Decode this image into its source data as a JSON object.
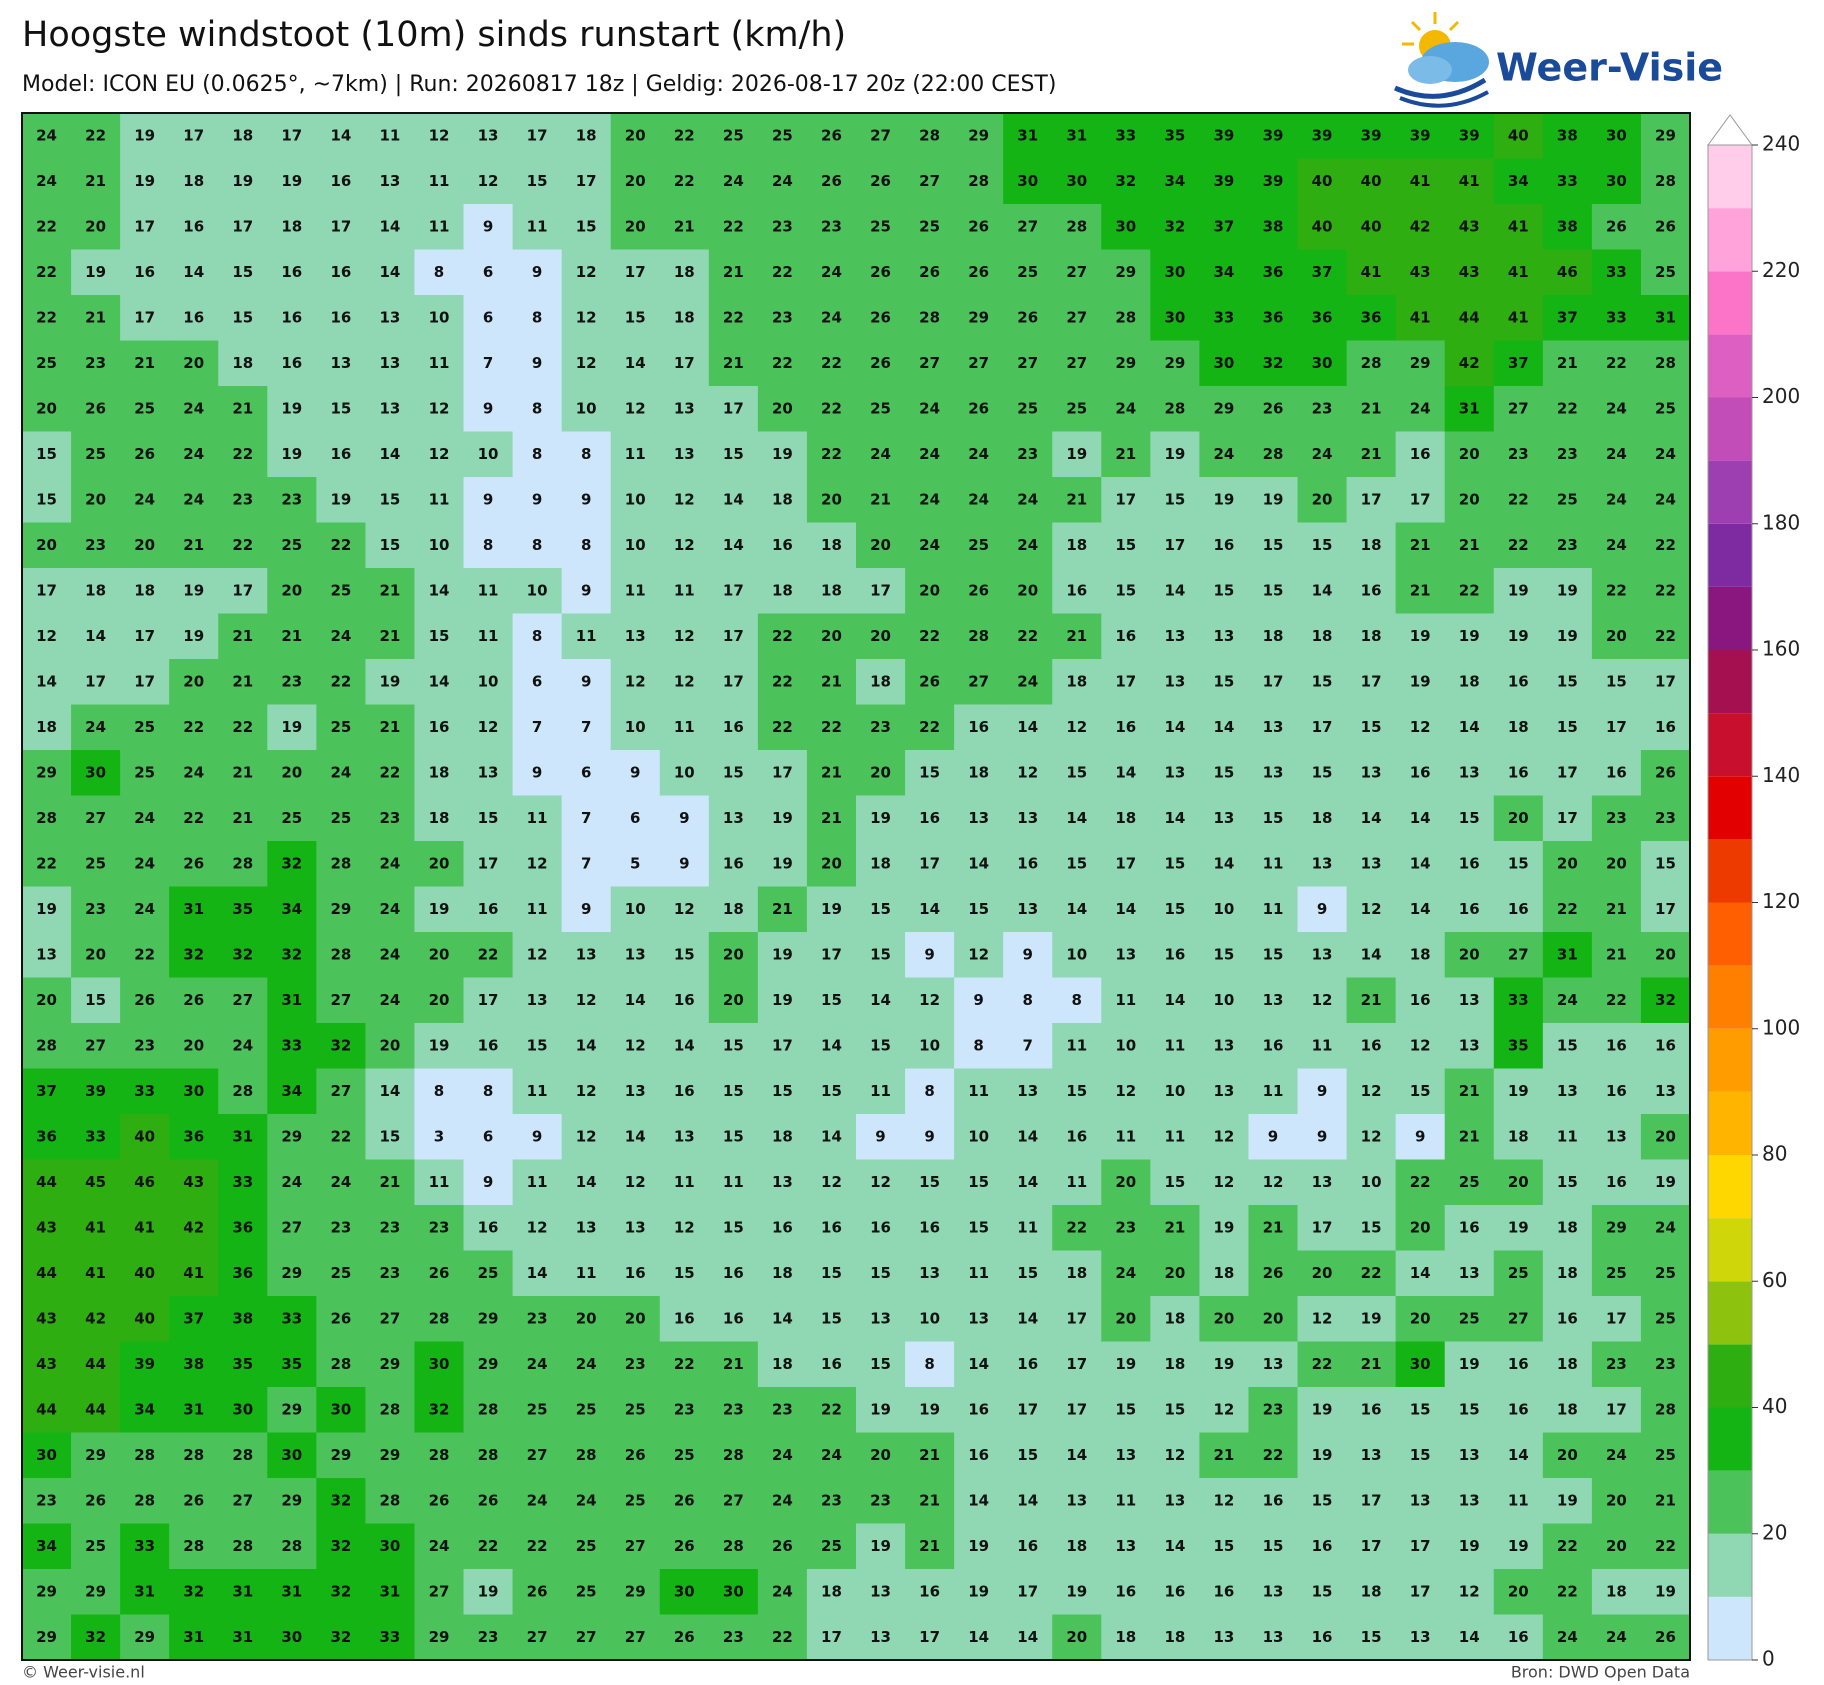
{
  "header": {
    "title": "Hoogste windstoot (10m) sinds runstart (km/h)",
    "subtitle": "Model: ICON EU (0.0625°, ~7km)  |  Run: 20260817 18z  |  Geldig: 2026-08-17 20z (22:00 CEST)"
  },
  "logo": {
    "text": "Weer-Visie"
  },
  "footer": {
    "left": "© Weer-visie.nl",
    "right": "Bron: DWD Open Data"
  },
  "colorbar": {
    "ticks": [
      0,
      20,
      40,
      60,
      80,
      100,
      120,
      140,
      160,
      180,
      200,
      220,
      240
    ],
    "colors": [
      "#cde6fb",
      "#8fd8b3",
      "#4cc25a",
      "#14b414",
      "#2fae12",
      "#8dc30f",
      "#cfd60a",
      "#fed600",
      "#ffb400",
      "#ff9c00",
      "#ff7f00",
      "#ff5f00",
      "#ec3a00",
      "#e30000",
      "#c8102e",
      "#a51050",
      "#8a1780",
      "#7e2aa0",
      "#9d3fb0",
      "#c24db8",
      "#dd5fc2",
      "#fc74c8",
      "#ffa3da",
      "#ffcde9"
    ]
  },
  "grid": {
    "rows": [
      [
        24,
        22,
        19,
        17,
        18,
        17,
        14,
        11,
        12,
        13,
        17,
        18,
        20,
        22,
        25,
        25,
        26,
        27,
        28,
        29,
        31,
        31,
        33,
        35,
        39,
        39,
        39,
        39,
        39,
        39,
        40,
        38,
        30,
        29
      ],
      [
        24,
        21,
        19,
        18,
        19,
        19,
        16,
        13,
        11,
        12,
        15,
        17,
        20,
        22,
        24,
        24,
        26,
        26,
        27,
        28,
        30,
        30,
        32,
        34,
        39,
        39,
        40,
        40,
        41,
        41,
        34,
        33,
        30,
        28
      ],
      [
        22,
        20,
        17,
        16,
        17,
        18,
        17,
        14,
        11,
        9,
        11,
        15,
        20,
        21,
        22,
        23,
        23,
        25,
        25,
        26,
        27,
        28,
        30,
        32,
        37,
        38,
        40,
        40,
        42,
        43,
        41,
        38,
        26,
        26
      ],
      [
        22,
        19,
        16,
        14,
        15,
        16,
        16,
        14,
        8,
        6,
        9,
        12,
        17,
        18,
        21,
        22,
        24,
        26,
        26,
        26,
        25,
        27,
        29,
        30,
        34,
        36,
        37,
        41,
        43,
        43,
        41,
        46,
        33,
        25
      ],
      [
        22,
        21,
        17,
        16,
        15,
        16,
        16,
        13,
        10,
        6,
        8,
        12,
        15,
        18,
        22,
        23,
        24,
        26,
        28,
        29,
        26,
        27,
        28,
        30,
        33,
        36,
        36,
        36,
        41,
        44,
        41,
        37,
        33,
        31
      ],
      [
        25,
        23,
        21,
        20,
        18,
        16,
        13,
        13,
        11,
        7,
        9,
        12,
        14,
        17,
        21,
        22,
        22,
        26,
        27,
        27,
        27,
        27,
        29,
        29,
        30,
        32,
        30,
        28,
        29,
        42,
        37,
        21,
        22,
        28
      ],
      [
        20,
        26,
        25,
        24,
        21,
        19,
        15,
        13,
        12,
        9,
        8,
        10,
        12,
        13,
        17,
        20,
        22,
        25,
        24,
        26,
        25,
        25,
        24,
        28,
        29,
        26,
        23,
        21,
        24,
        31,
        27,
        22,
        24,
        25
      ],
      [
        15,
        25,
        26,
        24,
        22,
        19,
        16,
        14,
        12,
        10,
        8,
        8,
        11,
        13,
        15,
        19,
        22,
        24,
        24,
        24,
        23,
        19,
        21,
        19,
        24,
        28,
        24,
        21,
        16,
        20,
        23,
        23,
        24,
        24
      ],
      [
        15,
        20,
        24,
        24,
        23,
        23,
        19,
        15,
        11,
        9,
        9,
        9,
        10,
        12,
        14,
        18,
        20,
        21,
        24,
        24,
        24,
        21,
        17,
        15,
        19,
        19,
        20,
        17,
        17,
        20,
        22,
        25,
        24,
        24
      ],
      [
        20,
        23,
        20,
        21,
        22,
        25,
        22,
        15,
        10,
        8,
        8,
        8,
        10,
        12,
        14,
        16,
        18,
        20,
        24,
        25,
        24,
        18,
        15,
        17,
        16,
        15,
        15,
        18,
        21,
        21,
        22,
        23,
        24,
        22
      ],
      [
        17,
        18,
        18,
        19,
        17,
        20,
        25,
        21,
        14,
        11,
        10,
        9,
        11,
        11,
        17,
        18,
        18,
        17,
        20,
        26,
        20,
        16,
        15,
        14,
        15,
        15,
        14,
        16,
        21,
        22,
        19,
        19,
        22,
        22
      ],
      [
        12,
        14,
        17,
        19,
        21,
        21,
        24,
        21,
        15,
        11,
        8,
        11,
        13,
        12,
        17,
        22,
        20,
        20,
        22,
        28,
        22,
        21,
        16,
        13,
        13,
        18,
        18,
        18,
        19,
        19,
        19,
        19,
        20,
        22
      ],
      [
        14,
        17,
        17,
        20,
        21,
        23,
        22,
        19,
        14,
        10,
        6,
        9,
        12,
        12,
        17,
        22,
        21,
        18,
        26,
        27,
        24,
        18,
        17,
        13,
        15,
        17,
        15,
        17,
        19,
        18,
        16,
        15,
        15,
        17
      ],
      [
        18,
        24,
        25,
        22,
        22,
        19,
        25,
        21,
        16,
        12,
        7,
        7,
        10,
        11,
        16,
        22,
        22,
        23,
        22,
        16,
        14,
        12,
        16,
        14,
        14,
        13,
        17,
        15,
        12,
        14,
        18,
        15,
        17,
        16
      ],
      [
        29,
        30,
        25,
        24,
        21,
        20,
        24,
        22,
        18,
        13,
        9,
        6,
        9,
        10,
        15,
        17,
        21,
        20,
        15,
        18,
        12,
        15,
        14,
        13,
        15,
        13,
        15,
        13,
        16,
        13,
        16,
        17,
        16,
        26
      ],
      [
        28,
        27,
        24,
        22,
        21,
        25,
        25,
        23,
        18,
        15,
        11,
        7,
        6,
        9,
        13,
        19,
        21,
        19,
        16,
        13,
        13,
        14,
        18,
        14,
        13,
        15,
        18,
        14,
        14,
        15,
        20,
        17,
        23,
        23
      ],
      [
        22,
        25,
        24,
        26,
        28,
        32,
        28,
        24,
        20,
        17,
        12,
        7,
        5,
        9,
        16,
        19,
        20,
        18,
        17,
        14,
        16,
        15,
        17,
        15,
        14,
        11,
        13,
        13,
        14,
        16,
        15,
        20,
        20,
        15
      ],
      [
        19,
        23,
        24,
        31,
        35,
        34,
        29,
        24,
        19,
        16,
        11,
        9,
        10,
        12,
        18,
        21,
        19,
        15,
        14,
        15,
        13,
        14,
        14,
        15,
        10,
        11,
        9,
        12,
        14,
        16,
        16,
        22,
        21,
        17
      ],
      [
        13,
        20,
        22,
        32,
        32,
        32,
        28,
        24,
        20,
        22,
        12,
        13,
        13,
        15,
        20,
        19,
        17,
        15,
        9,
        12,
        9,
        10,
        13,
        16,
        15,
        15,
        13,
        14,
        18,
        20,
        27,
        31,
        21,
        20
      ],
      [
        20,
        15,
        26,
        26,
        27,
        31,
        27,
        24,
        20,
        17,
        13,
        12,
        14,
        16,
        20,
        19,
        15,
        14,
        12,
        9,
        8,
        8,
        11,
        14,
        10,
        13,
        12,
        21,
        16,
        13,
        33,
        24,
        22,
        32
      ],
      [
        28,
        27,
        23,
        20,
        24,
        33,
        32,
        20,
        19,
        16,
        15,
        14,
        12,
        14,
        15,
        17,
        14,
        15,
        10,
        8,
        7,
        11,
        10,
        11,
        13,
        16,
        11,
        16,
        12,
        13,
        35,
        15,
        16,
        16
      ],
      [
        37,
        39,
        33,
        30,
        28,
        34,
        27,
        14,
        8,
        8,
        11,
        12,
        13,
        16,
        15,
        15,
        15,
        11,
        8,
        11,
        13,
        15,
        12,
        10,
        13,
        11,
        9,
        12,
        15,
        21,
        19,
        13,
        16,
        13
      ],
      [
        36,
        33,
        40,
        36,
        31,
        29,
        22,
        15,
        3,
        6,
        9,
        12,
        14,
        13,
        15,
        18,
        14,
        9,
        9,
        10,
        14,
        16,
        11,
        11,
        12,
        9,
        9,
        12,
        9,
        21,
        18,
        11,
        13,
        20
      ],
      [
        44,
        45,
        46,
        43,
        33,
        24,
        24,
        21,
        11,
        9,
        11,
        14,
        12,
        11,
        11,
        13,
        12,
        12,
        15,
        15,
        14,
        11,
        20,
        15,
        12,
        12,
        13,
        10,
        22,
        25,
        20,
        15,
        16,
        19
      ],
      [
        43,
        41,
        41,
        42,
        36,
        27,
        23,
        23,
        23,
        16,
        12,
        13,
        13,
        12,
        15,
        16,
        16,
        16,
        16,
        15,
        11,
        22,
        23,
        21,
        19,
        21,
        17,
        15,
        20,
        16,
        19,
        18,
        29,
        24
      ],
      [
        44,
        41,
        40,
        41,
        36,
        29,
        25,
        23,
        26,
        25,
        14,
        11,
        16,
        15,
        16,
        18,
        15,
        15,
        13,
        11,
        15,
        18,
        24,
        20,
        18,
        26,
        20,
        22,
        14,
        13,
        25,
        18,
        25,
        25
      ],
      [
        43,
        42,
        40,
        37,
        38,
        33,
        26,
        27,
        28,
        29,
        23,
        20,
        20,
        16,
        16,
        14,
        15,
        13,
        10,
        13,
        14,
        17,
        20,
        18,
        20,
        20,
        12,
        19,
        20,
        25,
        27,
        16,
        17,
        25
      ],
      [
        43,
        44,
        39,
        38,
        35,
        35,
        28,
        29,
        30,
        29,
        24,
        24,
        23,
        22,
        21,
        18,
        16,
        15,
        8,
        14,
        16,
        17,
        19,
        18,
        19,
        13,
        22,
        21,
        30,
        19,
        16,
        18,
        23,
        23
      ],
      [
        44,
        44,
        34,
        31,
        30,
        29,
        30,
        28,
        32,
        28,
        25,
        25,
        25,
        23,
        23,
        23,
        22,
        19,
        19,
        16,
        17,
        17,
        15,
        15,
        12,
        23,
        19,
        16,
        15,
        15,
        16,
        18,
        17,
        28
      ],
      [
        30,
        29,
        28,
        28,
        28,
        30,
        29,
        29,
        28,
        28,
        27,
        28,
        26,
        25,
        28,
        24,
        24,
        20,
        21,
        16,
        15,
        14,
        13,
        12,
        21,
        22,
        19,
        13,
        15,
        13,
        14,
        20,
        24,
        25
      ],
      [
        23,
        26,
        28,
        26,
        27,
        29,
        32,
        28,
        26,
        26,
        24,
        24,
        25,
        26,
        27,
        24,
        23,
        23,
        21,
        14,
        14,
        13,
        11,
        13,
        12,
        16,
        15,
        17,
        13,
        13,
        11,
        19,
        20,
        21
      ],
      [
        34,
        25,
        33,
        28,
        28,
        28,
        32,
        30,
        24,
        22,
        22,
        25,
        27,
        26,
        28,
        26,
        25,
        19,
        21,
        19,
        16,
        18,
        13,
        14,
        15,
        15,
        16,
        17,
        17,
        19,
        19,
        22,
        20,
        22
      ],
      [
        29,
        29,
        31,
        32,
        31,
        31,
        32,
        31,
        27,
        19,
        26,
        25,
        29,
        30,
        30,
        24,
        18,
        13,
        16,
        19,
        17,
        19,
        16,
        16,
        16,
        13,
        15,
        18,
        17,
        12,
        20,
        22,
        18,
        19
      ],
      [
        29,
        32,
        29,
        31,
        31,
        30,
        32,
        33,
        29,
        23,
        27,
        27,
        27,
        26,
        23,
        22,
        17,
        13,
        17,
        14,
        14,
        20,
        18,
        18,
        13,
        13,
        16,
        15,
        13,
        14,
        16,
        24,
        24,
        26
      ]
    ]
  }
}
